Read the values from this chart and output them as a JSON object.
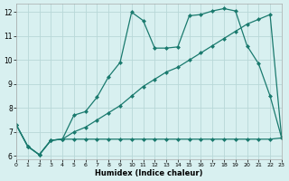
{
  "series1_x": [
    0,
    1,
    2,
    3,
    4,
    5,
    6,
    7,
    8,
    9,
    10,
    11,
    12,
    13,
    14,
    15,
    16,
    17,
    18,
    19,
    20,
    21,
    22,
    23
  ],
  "series1_y": [
    7.3,
    6.4,
    6.05,
    6.65,
    6.7,
    7.7,
    7.85,
    8.45,
    9.3,
    9.9,
    12.0,
    11.65,
    10.5,
    10.5,
    10.55,
    11.85,
    11.9,
    12.05,
    12.15,
    12.05,
    10.6,
    9.85,
    8.5,
    6.75
  ],
  "series2_x": [
    0,
    1,
    2,
    3,
    4,
    5,
    6,
    7,
    8,
    9,
    10,
    11,
    12,
    13,
    14,
    15,
    16,
    17,
    18,
    19,
    20,
    21,
    22,
    23
  ],
  "series2_y": [
    7.3,
    6.4,
    6.05,
    6.65,
    6.7,
    7.0,
    7.2,
    7.5,
    7.8,
    8.1,
    8.5,
    8.9,
    9.2,
    9.5,
    9.7,
    10.0,
    10.3,
    10.6,
    10.9,
    11.2,
    11.5,
    11.7,
    11.9,
    6.75
  ],
  "series3_x": [
    0,
    1,
    2,
    3,
    4,
    5,
    6,
    7,
    8,
    9,
    10,
    11,
    12,
    13,
    14,
    15,
    16,
    17,
    18,
    19,
    20,
    21,
    22,
    23
  ],
  "series3_y": [
    7.3,
    6.4,
    6.05,
    6.65,
    6.7,
    6.7,
    6.7,
    6.7,
    6.7,
    6.7,
    6.7,
    6.7,
    6.7,
    6.7,
    6.7,
    6.7,
    6.7,
    6.7,
    6.7,
    6.7,
    6.7,
    6.7,
    6.7,
    6.75
  ],
  "line_color": "#1a7a6e",
  "bg_color": "#d8f0f0",
  "grid_color": "#b8d8d8",
  "xlabel": "Humidex (Indice chaleur)",
  "xlim": [
    0,
    23
  ],
  "ylim": [
    5.85,
    12.35
  ],
  "xticks": [
    0,
    1,
    2,
    3,
    4,
    5,
    6,
    7,
    8,
    9,
    10,
    11,
    12,
    13,
    14,
    15,
    16,
    17,
    18,
    19,
    20,
    21,
    22,
    23
  ],
  "yticks": [
    6,
    7,
    8,
    9,
    10,
    11,
    12
  ],
  "markersize": 2.5,
  "linewidth": 0.9
}
